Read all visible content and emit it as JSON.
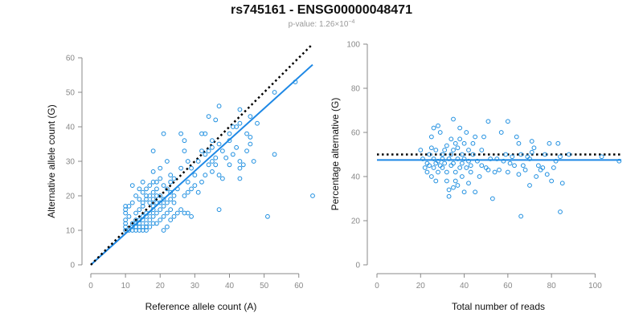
{
  "header": {
    "title": "rs745161 - ENSG00000048471",
    "pvalue_prefix": "p-value: 1.26×10",
    "pvalue_exponent": "−4"
  },
  "colors": {
    "points": "#1f8fe0",
    "fit": "#1e88e5",
    "reference": "#000000",
    "axis": "#888888"
  },
  "chart_data": [
    {
      "type": "scatter",
      "xlabel": "Reference allele count (A)",
      "ylabel": "Alternative allele count (G)",
      "xlim": [
        0,
        64
      ],
      "ylim": [
        0,
        60
      ],
      "xticks": [
        0,
        10,
        20,
        30,
        40,
        50,
        60
      ],
      "yticks": [
        0,
        10,
        20,
        30,
        40,
        50,
        60
      ],
      "grid": false,
      "reference_line": {
        "style": "dotted",
        "from": [
          0,
          0
        ],
        "to": [
          64,
          64
        ]
      },
      "fit_line": {
        "style": "solid",
        "from": [
          0,
          0
        ],
        "to": [
          64,
          58
        ]
      },
      "points": [
        [
          10,
          10
        ],
        [
          10,
          11
        ],
        [
          10,
          12
        ],
        [
          10,
          13
        ],
        [
          10,
          15
        ],
        [
          10,
          16
        ],
        [
          10,
          17
        ],
        [
          11,
          10
        ],
        [
          11,
          14
        ],
        [
          11,
          17
        ],
        [
          12,
          10
        ],
        [
          12,
          11
        ],
        [
          12,
          12
        ],
        [
          12,
          18
        ],
        [
          12,
          23
        ],
        [
          13,
          10
        ],
        [
          13,
          11
        ],
        [
          13,
          12
        ],
        [
          13,
          13
        ],
        [
          13,
          15
        ],
        [
          13,
          20
        ],
        [
          14,
          10
        ],
        [
          14,
          11
        ],
        [
          14,
          12
        ],
        [
          14,
          13
        ],
        [
          14,
          16
        ],
        [
          14,
          19
        ],
        [
          14,
          22
        ],
        [
          15,
          10
        ],
        [
          15,
          11
        ],
        [
          15,
          13
        ],
        [
          15,
          14
        ],
        [
          15,
          17
        ],
        [
          15,
          18
        ],
        [
          15,
          21
        ],
        [
          15,
          24
        ],
        [
          16,
          10
        ],
        [
          16,
          11
        ],
        [
          16,
          12
        ],
        [
          16,
          14
        ],
        [
          16,
          15
        ],
        [
          16,
          19
        ],
        [
          16,
          20
        ],
        [
          16,
          22
        ],
        [
          17,
          11
        ],
        [
          17,
          13
        ],
        [
          17,
          15
        ],
        [
          17,
          18
        ],
        [
          17,
          20
        ],
        [
          17,
          23
        ],
        [
          18,
          12
        ],
        [
          18,
          14
        ],
        [
          18,
          16
        ],
        [
          18,
          17
        ],
        [
          18,
          19
        ],
        [
          18,
          21
        ],
        [
          18,
          24
        ],
        [
          18,
          27
        ],
        [
          18,
          33
        ],
        [
          19,
          12
        ],
        [
          19,
          15
        ],
        [
          19,
          18
        ],
        [
          19,
          20
        ],
        [
          19,
          22
        ],
        [
          19,
          24
        ],
        [
          20,
          13
        ],
        [
          20,
          16
        ],
        [
          20,
          18
        ],
        [
          20,
          20
        ],
        [
          20,
          25
        ],
        [
          20,
          28
        ],
        [
          21,
          10
        ],
        [
          21,
          14
        ],
        [
          21,
          17
        ],
        [
          21,
          19
        ],
        [
          21,
          23
        ],
        [
          21,
          38
        ],
        [
          22,
          11
        ],
        [
          22,
          15
        ],
        [
          22,
          18
        ],
        [
          22,
          22
        ],
        [
          22,
          30
        ],
        [
          23,
          13
        ],
        [
          23,
          16
        ],
        [
          23,
          19
        ],
        [
          23,
          21
        ],
        [
          23,
          24
        ],
        [
          23,
          26
        ],
        [
          24,
          14
        ],
        [
          24,
          18
        ],
        [
          24,
          20
        ],
        [
          24,
          25
        ],
        [
          25,
          15
        ],
        [
          25,
          22
        ],
        [
          26,
          16
        ],
        [
          26,
          28
        ],
        [
          26,
          38
        ],
        [
          27,
          15
        ],
        [
          27,
          20
        ],
        [
          27,
          33
        ],
        [
          27,
          36
        ],
        [
          28,
          15
        ],
        [
          28,
          21
        ],
        [
          28,
          24
        ],
        [
          28,
          30
        ],
        [
          29,
          14
        ],
        [
          29,
          22
        ],
        [
          29,
          28
        ],
        [
          30,
          23
        ],
        [
          30,
          26
        ],
        [
          31,
          21
        ],
        [
          31,
          30
        ],
        [
          32,
          24
        ],
        [
          32,
          33
        ],
        [
          32,
          38
        ],
        [
          33,
          26
        ],
        [
          33,
          32
        ],
        [
          33,
          38
        ],
        [
          34,
          29
        ],
        [
          34,
          33
        ],
        [
          34,
          43
        ],
        [
          35,
          27
        ],
        [
          35,
          30
        ],
        [
          35,
          34
        ],
        [
          35,
          36
        ],
        [
          36,
          29
        ],
        [
          36,
          31
        ],
        [
          36,
          42
        ],
        [
          37,
          16
        ],
        [
          37,
          26
        ],
        [
          37,
          35
        ],
        [
          37,
          46
        ],
        [
          38,
          25
        ],
        [
          38,
          33
        ],
        [
          39,
          31
        ],
        [
          40,
          29
        ],
        [
          40,
          36
        ],
        [
          40,
          38
        ],
        [
          41,
          32
        ],
        [
          41,
          40
        ],
        [
          42,
          34
        ],
        [
          42,
          40
        ],
        [
          43,
          25
        ],
        [
          43,
          28
        ],
        [
          43,
          30
        ],
        [
          43,
          41
        ],
        [
          43,
          45
        ],
        [
          44,
          29
        ],
        [
          45,
          33
        ],
        [
          45,
          38
        ],
        [
          46,
          35
        ],
        [
          46,
          37
        ],
        [
          46,
          43
        ],
        [
          47,
          30
        ],
        [
          48,
          41
        ],
        [
          51,
          14
        ],
        [
          53,
          32
        ],
        [
          53,
          50
        ],
        [
          59,
          53
        ],
        [
          64,
          20
        ]
      ]
    },
    {
      "type": "scatter",
      "xlabel": "Total number of reads",
      "ylabel": "Percentage alternative (G)",
      "xlim": [
        0,
        112
      ],
      "ylim": [
        0,
        100
      ],
      "xticks": [
        0,
        20,
        40,
        60,
        80,
        100
      ],
      "yticks": [
        0,
        20,
        40,
        60,
        80,
        100
      ],
      "grid": false,
      "reference_line": {
        "style": "dotted",
        "y": 50
      },
      "fit_line": {
        "style": "solid",
        "y": 47.5
      },
      "points": [
        [
          20,
          52
        ],
        [
          21,
          48
        ],
        [
          22,
          44
        ],
        [
          23,
          46
        ],
        [
          23,
          42
        ],
        [
          24,
          50
        ],
        [
          24,
          45
        ],
        [
          25,
          53
        ],
        [
          25,
          40
        ],
        [
          25,
          58
        ],
        [
          26,
          48
        ],
        [
          26,
          44
        ],
        [
          26,
          62
        ],
        [
          27,
          38
        ],
        [
          27,
          46
        ],
        [
          27,
          52
        ],
        [
          28,
          63
        ],
        [
          28,
          42
        ],
        [
          28,
          47
        ],
        [
          29,
          45
        ],
        [
          29,
          60
        ],
        [
          30,
          50
        ],
        [
          30,
          44
        ],
        [
          30,
          48
        ],
        [
          31,
          46
        ],
        [
          31,
          52
        ],
        [
          32,
          42
        ],
        [
          32,
          38
        ],
        [
          32,
          54
        ],
        [
          33,
          31
        ],
        [
          33,
          34
        ],
        [
          33,
          48
        ],
        [
          34,
          45
        ],
        [
          34,
          57
        ],
        [
          34,
          50
        ],
        [
          35,
          35
        ],
        [
          35,
          46
        ],
        [
          35,
          52
        ],
        [
          35,
          66
        ],
        [
          36,
          42
        ],
        [
          36,
          55
        ],
        [
          36,
          38
        ],
        [
          37,
          48
        ],
        [
          37,
          53
        ],
        [
          37,
          36
        ],
        [
          38,
          44
        ],
        [
          38,
          57
        ],
        [
          38,
          62
        ],
        [
          39,
          40
        ],
        [
          39,
          50
        ],
        [
          39,
          46
        ],
        [
          40,
          48
        ],
        [
          40,
          55
        ],
        [
          40,
          33
        ],
        [
          41,
          44
        ],
        [
          41,
          60
        ],
        [
          42,
          47
        ],
        [
          42,
          52
        ],
        [
          42,
          37
        ],
        [
          43,
          45
        ],
        [
          43,
          42
        ],
        [
          44,
          55
        ],
        [
          44,
          50
        ],
        [
          45,
          33
        ],
        [
          45,
          58
        ],
        [
          46,
          47
        ],
        [
          47,
          40
        ],
        [
          48,
          45
        ],
        [
          48,
          52
        ],
        [
          49,
          58
        ],
        [
          50,
          44
        ],
        [
          51,
          43
        ],
        [
          51,
          65
        ],
        [
          52,
          48
        ],
        [
          53,
          30
        ],
        [
          54,
          42
        ],
        [
          55,
          48
        ],
        [
          56,
          43
        ],
        [
          57,
          60
        ],
        [
          58,
          47
        ],
        [
          59,
          50
        ],
        [
          60,
          65
        ],
        [
          60,
          42
        ],
        [
          61,
          46
        ],
        [
          62,
          49
        ],
        [
          63,
          45
        ],
        [
          64,
          58
        ],
        [
          65,
          41
        ],
        [
          65,
          55
        ],
        [
          66,
          22
        ],
        [
          66,
          50
        ],
        [
          67,
          45
        ],
        [
          68,
          43
        ],
        [
          69,
          49
        ],
        [
          70,
          48
        ],
        [
          70,
          36
        ],
        [
          71,
          56
        ],
        [
          71,
          51
        ],
        [
          72,
          53
        ],
        [
          73,
          40
        ],
        [
          74,
          45
        ],
        [
          75,
          43
        ],
        [
          76,
          44
        ],
        [
          77,
          50
        ],
        [
          78,
          41
        ],
        [
          79,
          55
        ],
        [
          80,
          38
        ],
        [
          81,
          44
        ],
        [
          82,
          47
        ],
        [
          83,
          55
        ],
        [
          84,
          49
        ],
        [
          84,
          24
        ],
        [
          85,
          37
        ],
        [
          88,
          50
        ],
        [
          103,
          49
        ],
        [
          111,
          47
        ]
      ]
    }
  ]
}
